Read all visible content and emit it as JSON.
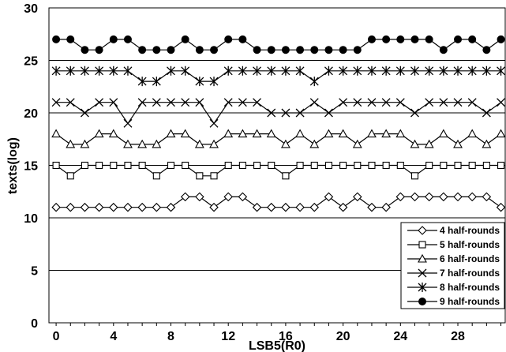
{
  "chart_data": {
    "type": "line",
    "title": "",
    "xlabel": "LSB5(R0)",
    "ylabel": "texts(log)",
    "xlim": [
      -0.5,
      31.3
    ],
    "ylim": [
      0,
      30
    ],
    "xticks": [
      0,
      4,
      8,
      12,
      16,
      20,
      24,
      28
    ],
    "yticks": [
      0,
      5,
      10,
      15,
      20,
      25,
      30
    ],
    "grid": "horizontal",
    "legend_position": "bottom-right",
    "x": [
      0,
      1,
      2,
      3,
      4,
      5,
      6,
      7,
      8,
      9,
      10,
      11,
      12,
      13,
      14,
      15,
      16,
      17,
      18,
      19,
      20,
      21,
      22,
      23,
      24,
      25,
      26,
      27,
      28,
      29,
      30,
      31
    ],
    "series": [
      {
        "name": "4 half-rounds",
        "marker": "diamond-open",
        "values": [
          11,
          11,
          11,
          11,
          11,
          11,
          11,
          11,
          11,
          12,
          12,
          11,
          12,
          12,
          11,
          11,
          11,
          11,
          11,
          12,
          11,
          12,
          11,
          11,
          12,
          12,
          12,
          12,
          12,
          12,
          12,
          11
        ]
      },
      {
        "name": "5 half-rounds",
        "marker": "square-open",
        "values": [
          15,
          14,
          15,
          15,
          15,
          15,
          15,
          14,
          15,
          15,
          14,
          14,
          15,
          15,
          15,
          15,
          14,
          15,
          15,
          15,
          15,
          15,
          15,
          15,
          15,
          14,
          15,
          15,
          15,
          15,
          15,
          15
        ]
      },
      {
        "name": "6 half-rounds",
        "marker": "triangle-open",
        "values": [
          18,
          17,
          17,
          18,
          18,
          17,
          17,
          17,
          18,
          18,
          17,
          17,
          18,
          18,
          18,
          18,
          17,
          18,
          17,
          18,
          18,
          17,
          18,
          18,
          18,
          17,
          17,
          18,
          17,
          18,
          17,
          18
        ]
      },
      {
        "name": "7 half-rounds",
        "marker": "x",
        "values": [
          21,
          21,
          20,
          21,
          21,
          19,
          21,
          21,
          21,
          21,
          21,
          19,
          21,
          21,
          21,
          20,
          20,
          20,
          21,
          20,
          21,
          21,
          21,
          21,
          21,
          20,
          21,
          21,
          21,
          21,
          20,
          21
        ]
      },
      {
        "name": "8 half-rounds",
        "marker": "asterisk",
        "values": [
          24,
          24,
          24,
          24,
          24,
          24,
          23,
          23,
          24,
          24,
          23,
          23,
          24,
          24,
          24,
          24,
          24,
          24,
          23,
          24,
          24,
          24,
          24,
          24,
          24,
          24,
          24,
          24,
          24,
          24,
          24,
          24
        ]
      },
      {
        "name": "9 half-rounds",
        "marker": "circle-filled",
        "values": [
          27,
          27,
          26,
          26,
          27,
          27,
          26,
          26,
          26,
          27,
          26,
          26,
          27,
          27,
          26,
          26,
          26,
          26,
          26,
          26,
          26,
          26,
          27,
          27,
          27,
          27,
          27,
          26,
          27,
          27,
          26,
          27
        ]
      }
    ]
  }
}
